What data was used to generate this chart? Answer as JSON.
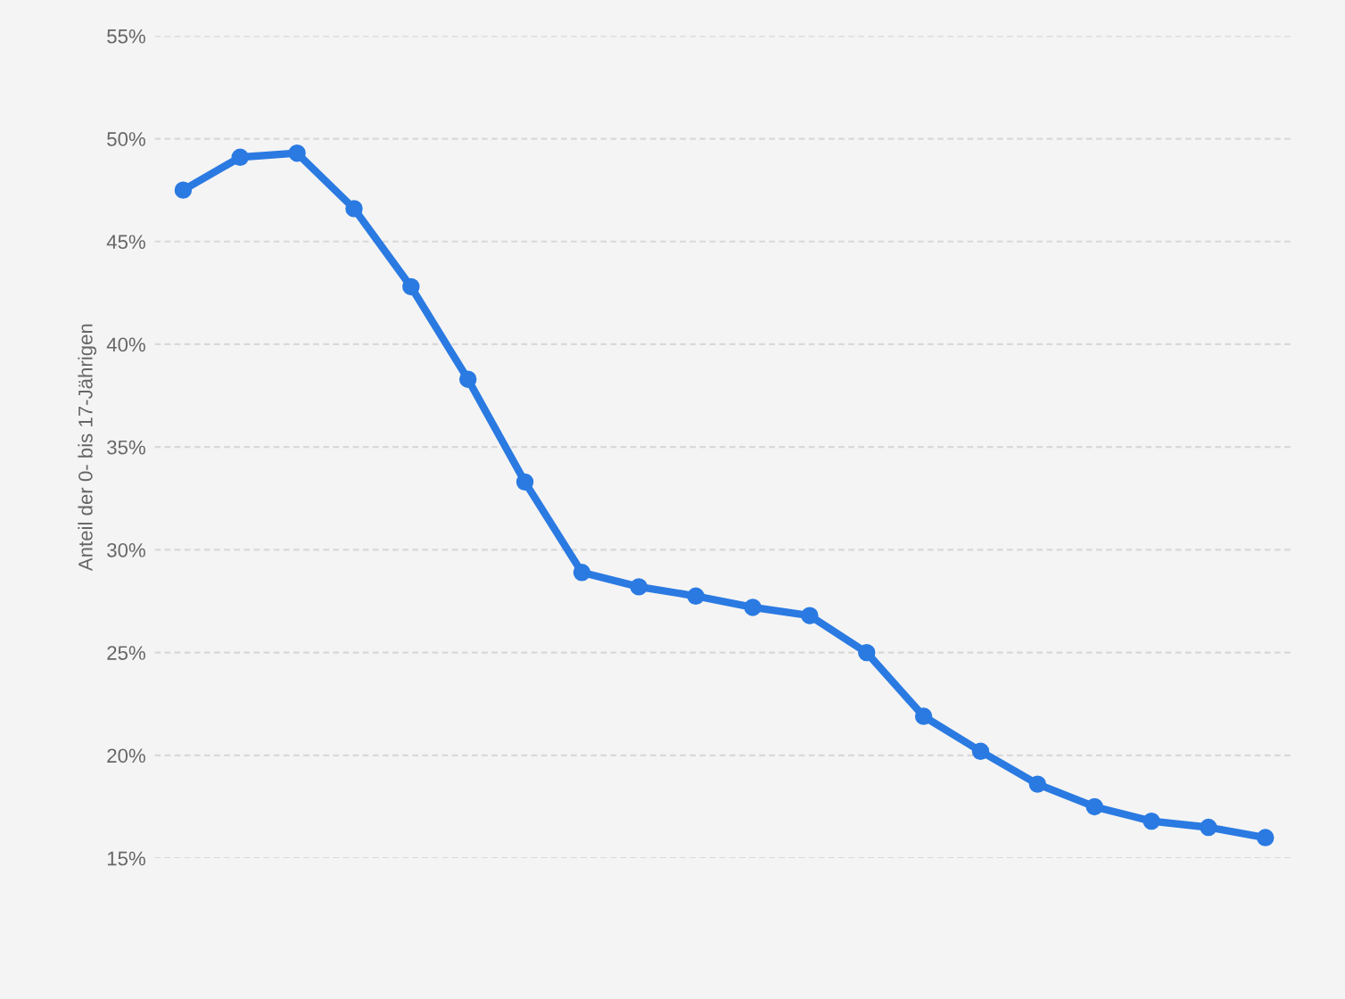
{
  "chart_data": {
    "type": "line",
    "ylabel": "Anteil der 0- bis 17-Jährigen",
    "categories": [
      null,
      null,
      null,
      null,
      null,
      null,
      null,
      null,
      null,
      null,
      null,
      null,
      null,
      null,
      null,
      null,
      null,
      null,
      null,
      null
    ],
    "series": [
      {
        "color": "#2a7ae2",
        "values": [
          47.5,
          49.1,
          49.3,
          46.6,
          42.8,
          38.3,
          33.3,
          28.9,
          28.2,
          27.75,
          27.2,
          26.8,
          25.0,
          21.9,
          20.2,
          18.6,
          17.5,
          16.8,
          16.5,
          16.0
        ]
      }
    ],
    "ylim": [
      15,
      55
    ],
    "yticks": [
      {
        "value": 15,
        "label": "15%"
      },
      {
        "value": 20,
        "label": "20%"
      },
      {
        "value": 25,
        "label": "25%"
      },
      {
        "value": 30,
        "label": "30%"
      },
      {
        "value": 35,
        "label": "35%"
      },
      {
        "value": 40,
        "label": "40%"
      },
      {
        "value": 45,
        "label": "45%"
      },
      {
        "value": 50,
        "label": "50%"
      },
      {
        "value": 55,
        "label": "55%"
      }
    ],
    "grid": "y",
    "marker": "circle",
    "line_style": "solid",
    "tick_labels": "y"
  }
}
